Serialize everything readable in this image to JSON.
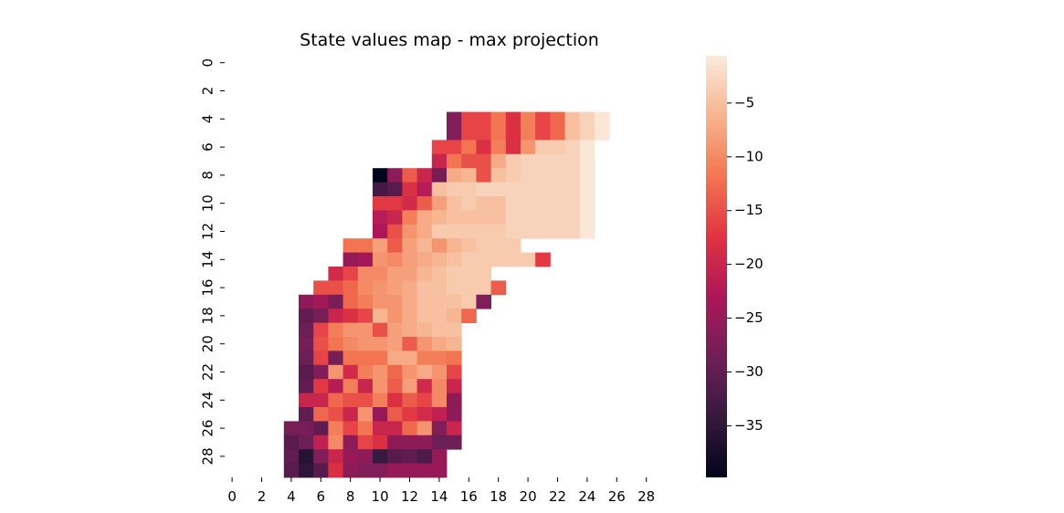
{
  "chart_data": {
    "type": "heatmap",
    "title": "State values map - max projection",
    "x_ticks": [
      "0",
      "2",
      "4",
      "6",
      "8",
      "10",
      "12",
      "14",
      "16",
      "18",
      "20",
      "22",
      "24",
      "26",
      "28"
    ],
    "y_ticks": [
      "0",
      "2",
      "4",
      "6",
      "8",
      "10",
      "12",
      "14",
      "16",
      "18",
      "20",
      "22",
      "24",
      "26",
      "28"
    ],
    "n_rows": 30,
    "n_cols": 30,
    "colorbar": {
      "ticks": [
        -5,
        -10,
        -15,
        -20,
        -25,
        -30,
        -35
      ],
      "tick_labels": [
        "−5",
        "−10",
        "−15",
        "−20",
        "−25",
        "−30",
        "−35"
      ],
      "vmin": -39.8,
      "vmax": -0.6,
      "colormap": "rocket",
      "colormap_stops": [
        "#03051a",
        "#36193e",
        "#701f57",
        "#ad1759",
        "#e13342",
        "#f37651",
        "#f6b48f",
        "#faebdd"
      ]
    },
    "cells": [
      {
        "row": 4,
        "start_col": 15,
        "values": [
          -27,
          -16,
          -16,
          -12,
          -18,
          -11,
          -16,
          -13,
          -5,
          -3,
          -1
        ]
      },
      {
        "row": 5,
        "start_col": 15,
        "values": [
          -27,
          -16,
          -16,
          -12,
          -18,
          -11,
          -16,
          -13,
          -5,
          -3,
          -1
        ]
      },
      {
        "row": 6,
        "start_col": 14,
        "values": [
          -16,
          -16,
          -12,
          -18,
          -11,
          -18,
          -9,
          -4,
          -4,
          -3,
          -1
        ]
      },
      {
        "row": 7,
        "start_col": 14,
        "values": [
          -20,
          -12,
          -15,
          -15,
          -7,
          -4,
          -3,
          -3,
          -3,
          -3,
          -1
        ]
      },
      {
        "row": 8,
        "start_col": 10,
        "values": [
          -40,
          -26,
          -14,
          -20,
          -28,
          -7,
          -6,
          -15,
          -5,
          -4,
          -3,
          -3,
          -3,
          -3,
          -1
        ]
      },
      {
        "row": 9,
        "start_col": 10,
        "values": [
          -33,
          -31,
          -18,
          -22,
          -5,
          -4,
          -4,
          -3,
          -3,
          -3,
          -3,
          -3,
          -3,
          -3,
          -1
        ]
      },
      {
        "row": 10,
        "start_col": 10,
        "values": [
          -17,
          -17,
          -19,
          -14,
          -8,
          -5,
          -4,
          -5,
          -5,
          -3,
          -3,
          -3,
          -3,
          -3,
          -1
        ]
      },
      {
        "row": 11,
        "start_col": 10,
        "values": [
          -22,
          -20,
          -11,
          -7,
          -6,
          -5,
          -5,
          -5,
          -5,
          -3,
          -3,
          -3,
          -3,
          -3,
          -1
        ]
      },
      {
        "row": 12,
        "start_col": 10,
        "values": [
          -23,
          -15,
          -9,
          -7,
          -4,
          -4,
          -4,
          -4,
          -4,
          -3,
          -3,
          -3,
          -3,
          -3,
          -1
        ]
      },
      {
        "row": 13,
        "start_col": 8,
        "values": [
          -12,
          -12,
          -8,
          -14,
          -8,
          -6,
          -9,
          -6,
          -5,
          -4,
          -4,
          -4
        ]
      },
      {
        "row": 14,
        "start_col": 8,
        "values": [
          -25,
          -24,
          -9,
          -10,
          -8,
          -7,
          -6,
          -5,
          -4,
          -4,
          -4,
          -4,
          -4,
          -17
        ]
      },
      {
        "row": 15,
        "start_col": 7,
        "values": [
          -19,
          -16,
          -10,
          -10,
          -8,
          -8,
          -6,
          -5,
          -4,
          -4,
          -4
        ]
      },
      {
        "row": 16,
        "start_col": 6,
        "values": [
          -15,
          -15,
          -13,
          -10,
          -9,
          -8,
          -7,
          -5,
          -5,
          -4,
          -4,
          -4,
          -14
        ]
      },
      {
        "row": 17,
        "start_col": 5,
        "values": [
          -26,
          -24,
          -28,
          -13,
          -11,
          -9,
          -9,
          -7,
          -5,
          -5,
          -5,
          -4,
          -27
        ]
      },
      {
        "row": 18,
        "start_col": 5,
        "values": [
          -30,
          -28,
          -20,
          -18,
          -16,
          -6,
          -9,
          -7,
          -5,
          -5,
          -6,
          -13
        ]
      },
      {
        "row": 19,
        "start_col": 5,
        "values": [
          -29,
          -16,
          -11,
          -9,
          -9,
          -15,
          -8,
          -7,
          -6,
          -5,
          -5
        ]
      },
      {
        "row": 20,
        "start_col": 5,
        "values": [
          -28,
          -15,
          -12,
          -10,
          -9,
          -9,
          -8,
          -14,
          -9,
          -7,
          -6
        ]
      },
      {
        "row": 21,
        "start_col": 5,
        "values": [
          -29,
          -16,
          -28,
          -12,
          -12,
          -12,
          -7,
          -7,
          -11,
          -11,
          -12
        ]
      },
      {
        "row": 22,
        "start_col": 5,
        "values": [
          -31,
          -27,
          -9,
          -19,
          -11,
          -9,
          -13,
          -9,
          -7,
          -9,
          -16
        ]
      },
      {
        "row": 23,
        "start_col": 5,
        "values": [
          -30,
          -17,
          -22,
          -11,
          -20,
          -9,
          -14,
          -8,
          -19,
          -10,
          -20
        ]
      },
      {
        "row": 24,
        "start_col": 5,
        "values": [
          -20,
          -20,
          -13,
          -15,
          -15,
          -11,
          -18,
          -14,
          -16,
          -10,
          -26
        ]
      },
      {
        "row": 25,
        "start_col": 5,
        "values": [
          -30,
          -13,
          -15,
          -20,
          -9,
          -25,
          -14,
          -17,
          -19,
          -21,
          -26
        ]
      },
      {
        "row": 26,
        "start_col": 4,
        "values": [
          -28,
          -28,
          -30,
          -11,
          -16,
          -12,
          -20,
          -20,
          -13,
          -9,
          -27,
          -20
        ]
      },
      {
        "row": 27,
        "start_col": 4,
        "values": [
          -31,
          -29,
          -21,
          -10,
          -26,
          -16,
          -18,
          -26,
          -26,
          -26,
          -29,
          -29
        ]
      },
      {
        "row": 28,
        "start_col": 4,
        "values": [
          -30,
          -36,
          -27,
          -20,
          -25,
          -26,
          -34,
          -31,
          -30,
          -32,
          -25
        ]
      },
      {
        "row": 29,
        "start_col": 4,
        "values": [
          -31,
          -35,
          -31,
          -18,
          -26,
          -27,
          -27,
          -25,
          -25,
          -25,
          -25
        ]
      }
    ]
  }
}
